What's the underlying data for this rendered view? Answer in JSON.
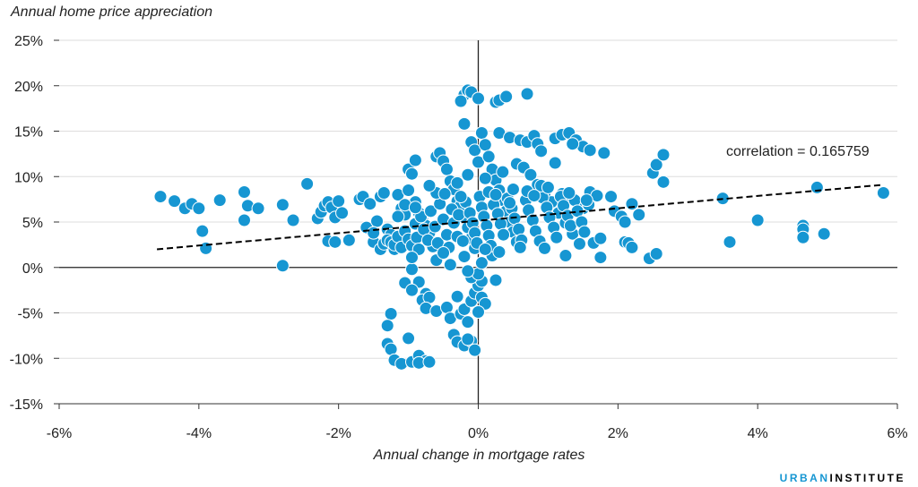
{
  "chart_data": {
    "type": "scatter",
    "ylabel": "Annual home price appreciation",
    "xlabel": "Annual change in mortgage rates",
    "annotation": "correlation = 0.165759",
    "brand": {
      "part1": "URBAN",
      "part2": "INSTITUTE"
    },
    "xlim": [
      -6,
      6
    ],
    "ylim": [
      -15,
      25
    ],
    "x_ticks": [
      -6,
      -4,
      -2,
      0,
      2,
      4,
      6
    ],
    "x_tick_labels": [
      "-6%",
      "-4%",
      "-2%",
      "0%",
      "2%",
      "4%",
      "6%"
    ],
    "y_ticks": [
      -15,
      -10,
      -5,
      0,
      5,
      10,
      15,
      20,
      25
    ],
    "y_tick_labels": [
      "-15%",
      "-10%",
      "-5%",
      "0%",
      "5%",
      "10%",
      "15%",
      "20%",
      "25%"
    ],
    "grid": "horizontal",
    "colors": {
      "points": "#1696d2",
      "point_stroke": "#ffffff",
      "trend": "#000000",
      "grid": "#dedddd"
    },
    "trendline": {
      "x": [
        -4.6,
        5.8
      ],
      "y": [
        2.0,
        9.1
      ],
      "style": "dashed"
    },
    "points": [
      [
        -4.55,
        7.8
      ],
      [
        -4.35,
        7.3
      ],
      [
        -4.2,
        6.5
      ],
      [
        -4.1,
        7.0
      ],
      [
        -4.0,
        6.5
      ],
      [
        -3.95,
        4.0
      ],
      [
        -3.9,
        2.1
      ],
      [
        -3.7,
        7.4
      ],
      [
        -3.35,
        8.3
      ],
      [
        -3.3,
        6.8
      ],
      [
        -3.35,
        5.2
      ],
      [
        -3.15,
        6.5
      ],
      [
        -2.8,
        6.9
      ],
      [
        -2.8,
        0.2
      ],
      [
        -2.65,
        5.2
      ],
      [
        -2.45,
        9.2
      ],
      [
        -2.3,
        5.4
      ],
      [
        -2.25,
        6.1
      ],
      [
        -2.2,
        6.8
      ],
      [
        -2.15,
        7.2
      ],
      [
        -2.1,
        6.6
      ],
      [
        -2.05,
        5.5
      ],
      [
        -2.0,
        7.3
      ],
      [
        -1.95,
        6.0
      ],
      [
        -2.15,
        2.9
      ],
      [
        -2.05,
        2.8
      ],
      [
        -1.85,
        3.0
      ],
      [
        -1.7,
        7.5
      ],
      [
        -1.65,
        7.8
      ],
      [
        -1.55,
        7.0
      ],
      [
        -1.5,
        2.8
      ],
      [
        -1.4,
        7.8
      ],
      [
        -1.35,
        8.2
      ],
      [
        -1.3,
        4.2
      ],
      [
        -1.25,
        3.6
      ],
      [
        -1.2,
        2.0
      ],
      [
        -1.15,
        8.0
      ],
      [
        -1.1,
        6.5
      ],
      [
        -1.05,
        5.8
      ],
      [
        -1.0,
        10.8
      ],
      [
        -0.95,
        10.3
      ],
      [
        -0.9,
        11.8
      ],
      [
        -1.0,
        8.5
      ],
      [
        -0.9,
        7.2
      ],
      [
        -0.85,
        6.0
      ],
      [
        -0.8,
        5.2
      ],
      [
        -0.75,
        4.6
      ],
      [
        -0.7,
        3.8
      ],
      [
        -0.65,
        2.3
      ],
      [
        -0.6,
        12.2
      ],
      [
        -0.55,
        12.6
      ],
      [
        -0.5,
        11.7
      ],
      [
        -0.45,
        10.8
      ],
      [
        -0.4,
        9.5
      ],
      [
        -0.35,
        8.6
      ],
      [
        -0.3,
        7.3
      ],
      [
        -0.25,
        6.8
      ],
      [
        -0.2,
        5.5
      ],
      [
        -0.15,
        4.4
      ],
      [
        -0.1,
        3.2
      ],
      [
        -0.05,
        2.1
      ],
      [
        -0.1,
        13.8
      ],
      [
        -0.05,
        12.9
      ],
      [
        0.0,
        11.6
      ],
      [
        -0.2,
        19.0
      ],
      [
        -0.15,
        19.5
      ],
      [
        -0.1,
        19.3
      ],
      [
        0.0,
        18.6
      ],
      [
        -0.25,
        18.3
      ],
      [
        -0.2,
        15.8
      ],
      [
        0.05,
        14.8
      ],
      [
        0.1,
        13.5
      ],
      [
        0.15,
        12.2
      ],
      [
        0.2,
        10.8
      ],
      [
        0.25,
        9.6
      ],
      [
        0.3,
        8.5
      ],
      [
        0.35,
        7.4
      ],
      [
        0.4,
        6.2
      ],
      [
        0.45,
        5.0
      ],
      [
        0.5,
        3.9
      ],
      [
        0.55,
        2.8
      ],
      [
        0.2,
        1.3
      ],
      [
        0.25,
        -1.4
      ],
      [
        0.25,
        18.2
      ],
      [
        0.3,
        18.4
      ],
      [
        0.4,
        18.8
      ],
      [
        0.7,
        19.1
      ],
      [
        0.3,
        14.8
      ],
      [
        0.45,
        14.3
      ],
      [
        0.6,
        14.0
      ],
      [
        0.7,
        13.8
      ],
      [
        0.8,
        14.5
      ],
      [
        0.85,
        13.6
      ],
      [
        0.9,
        12.8
      ],
      [
        0.55,
        11.4
      ],
      [
        0.65,
        11.0
      ],
      [
        0.75,
        10.2
      ],
      [
        0.85,
        9.1
      ],
      [
        0.95,
        8.0
      ],
      [
        1.05,
        7.2
      ],
      [
        1.15,
        6.0
      ],
      [
        1.25,
        4.9
      ],
      [
        1.35,
        3.7
      ],
      [
        1.45,
        2.6
      ],
      [
        1.1,
        14.2
      ],
      [
        1.2,
        14.6
      ],
      [
        1.3,
        14.8
      ],
      [
        1.4,
        14.0
      ],
      [
        1.5,
        13.3
      ],
      [
        1.35,
        13.6
      ],
      [
        1.6,
        12.9
      ],
      [
        1.1,
        11.5
      ],
      [
        1.8,
        12.6
      ],
      [
        1.2,
        8.1
      ],
      [
        1.3,
        7.6
      ],
      [
        1.4,
        7.2
      ],
      [
        1.5,
        6.5
      ],
      [
        1.6,
        8.3
      ],
      [
        1.7,
        7.9
      ],
      [
        1.9,
        7.8
      ],
      [
        1.95,
        6.2
      ],
      [
        2.05,
        5.6
      ],
      [
        2.1,
        5.0
      ],
      [
        2.2,
        7.0
      ],
      [
        2.3,
        5.8
      ],
      [
        1.25,
        1.3
      ],
      [
        1.75,
        1.1
      ],
      [
        1.65,
        2.7
      ],
      [
        1.75,
        3.2
      ],
      [
        2.1,
        2.8
      ],
      [
        2.15,
        2.7
      ],
      [
        2.2,
        2.2
      ],
      [
        2.45,
        1.0
      ],
      [
        2.55,
        1.5
      ],
      [
        2.5,
        10.4
      ],
      [
        2.55,
        11.3
      ],
      [
        2.65,
        12.4
      ],
      [
        2.65,
        9.4
      ],
      [
        3.5,
        7.6
      ],
      [
        3.6,
        2.8
      ],
      [
        4.0,
        5.2
      ],
      [
        4.65,
        4.6
      ],
      [
        4.65,
        4.2
      ],
      [
        4.65,
        3.3
      ],
      [
        4.85,
        8.8
      ],
      [
        4.95,
        3.7
      ],
      [
        5.8,
        8.2
      ],
      [
        -0.95,
        -0.2
      ],
      [
        -0.85,
        -1.6
      ],
      [
        -1.05,
        -1.7
      ],
      [
        -0.95,
        -2.5
      ],
      [
        -0.75,
        -2.9
      ],
      [
        -0.8,
        -3.6
      ],
      [
        -0.7,
        -3.3
      ],
      [
        -0.75,
        -4.5
      ],
      [
        -0.6,
        -4.8
      ],
      [
        -0.45,
        -4.4
      ],
      [
        -0.4,
        -5.6
      ],
      [
        -0.3,
        -3.2
      ],
      [
        -0.25,
        -5.1
      ],
      [
        -0.2,
        -4.6
      ],
      [
        -0.15,
        -6.0
      ],
      [
        -0.1,
        -3.7
      ],
      [
        -0.05,
        -2.8
      ],
      [
        0.0,
        -2.0
      ],
      [
        0.05,
        -3.3
      ],
      [
        0.1,
        -4.0
      ],
      [
        0.0,
        -4.9
      ],
      [
        0.05,
        -1.5
      ],
      [
        -0.1,
        -1.1
      ],
      [
        0.0,
        -0.7
      ],
      [
        -0.35,
        -7.4
      ],
      [
        -0.3,
        -8.2
      ],
      [
        -0.2,
        -8.6
      ],
      [
        -0.1,
        -8.1
      ],
      [
        -0.05,
        -9.1
      ],
      [
        -0.15,
        -7.9
      ],
      [
        -1.25,
        -5.1
      ],
      [
        -1.3,
        -6.4
      ],
      [
        -1.3,
        -8.4
      ],
      [
        -1.25,
        -9.0
      ],
      [
        -1.2,
        -10.2
      ],
      [
        -1.1,
        -10.6
      ],
      [
        -0.95,
        -10.4
      ],
      [
        -0.85,
        -9.7
      ],
      [
        -0.75,
        -10.3
      ],
      [
        -0.85,
        -10.5
      ],
      [
        -0.7,
        -10.4
      ],
      [
        -1.0,
        -7.8
      ],
      [
        -1.4,
        2.0
      ],
      [
        -1.35,
        2.6
      ],
      [
        -1.3,
        3.0
      ],
      [
        -1.25,
        2.8
      ],
      [
        -1.2,
        2.5
      ],
      [
        -1.15,
        3.4
      ],
      [
        -1.1,
        2.2
      ],
      [
        -1.05,
        4.0
      ],
      [
        -1.0,
        3.1
      ],
      [
        -0.95,
        2.4
      ],
      [
        -0.9,
        4.8
      ],
      [
        -0.88,
        3.3
      ],
      [
        -0.85,
        2.0
      ],
      [
        -0.82,
        5.6
      ],
      [
        -0.78,
        4.2
      ],
      [
        -0.72,
        3.0
      ],
      [
        -0.68,
        6.2
      ],
      [
        -0.62,
        4.5
      ],
      [
        -0.58,
        2.7
      ],
      [
        -0.55,
        7.0
      ],
      [
        -0.5,
        5.3
      ],
      [
        -0.45,
        3.6
      ],
      [
        -0.42,
        2.2
      ],
      [
        -0.38,
        6.4
      ],
      [
        -0.35,
        4.9
      ],
      [
        -0.3,
        3.4
      ],
      [
        -0.28,
        5.8
      ],
      [
        -0.22,
        2.9
      ],
      [
        -0.18,
        7.2
      ],
      [
        -0.12,
        6.0
      ],
      [
        -0.08,
        4.9
      ],
      [
        -0.05,
        3.8
      ],
      [
        -0.02,
        2.7
      ],
      [
        0.02,
        7.8
      ],
      [
        0.05,
        6.6
      ],
      [
        0.08,
        5.6
      ],
      [
        0.12,
        4.6
      ],
      [
        0.15,
        3.5
      ],
      [
        0.18,
        2.4
      ],
      [
        0.22,
        6.9
      ],
      [
        0.28,
        5.9
      ],
      [
        0.32,
        4.8
      ],
      [
        0.36,
        3.6
      ],
      [
        0.42,
        7.6
      ],
      [
        0.48,
        6.5
      ],
      [
        0.52,
        5.4
      ],
      [
        0.58,
        4.2
      ],
      [
        0.62,
        3.0
      ],
      [
        0.68,
        7.4
      ],
      [
        0.72,
        6.3
      ],
      [
        0.78,
        5.2
      ],
      [
        0.82,
        4.0
      ],
      [
        0.88,
        2.9
      ],
      [
        0.92,
        7.7
      ],
      [
        0.98,
        6.6
      ],
      [
        1.02,
        5.5
      ],
      [
        1.08,
        4.4
      ],
      [
        1.12,
        3.3
      ],
      [
        1.18,
        7.8
      ],
      [
        1.22,
        6.8
      ],
      [
        1.28,
        5.7
      ],
      [
        1.32,
        4.6
      ],
      [
        1.38,
        7.4
      ],
      [
        1.42,
        6.2
      ],
      [
        1.48,
        5.0
      ],
      [
        1.52,
        3.9
      ],
      [
        1.58,
        6.9
      ],
      [
        -0.6,
        8.2
      ],
      [
        -0.3,
        9.3
      ],
      [
        0.1,
        9.8
      ],
      [
        0.5,
        8.6
      ],
      [
        0.9,
        9.0
      ],
      [
        -0.7,
        9.0
      ],
      [
        -0.15,
        10.2
      ],
      [
        0.35,
        10.5
      ],
      [
        0.7,
        8.4
      ],
      [
        1.0,
        8.8
      ],
      [
        -1.15,
        5.6
      ],
      [
        -1.05,
        6.9
      ],
      [
        -0.48,
        8.1
      ],
      [
        0.15,
        8.3
      ],
      [
        0.45,
        7.1
      ],
      [
        0.8,
        7.9
      ],
      [
        1.3,
        8.2
      ],
      [
        1.55,
        7.4
      ],
      [
        -0.9,
        6.6
      ],
      [
        -0.25,
        7.8
      ],
      [
        0.25,
        8.0
      ],
      [
        -1.6,
        4.4
      ],
      [
        -1.45,
        5.1
      ],
      [
        -1.5,
        3.8
      ],
      [
        -0.6,
        0.8
      ],
      [
        -0.4,
        0.3
      ],
      [
        -0.2,
        1.2
      ],
      [
        0.05,
        0.5
      ],
      [
        0.3,
        1.7
      ],
      [
        -0.5,
        1.6
      ],
      [
        -0.15,
        -0.4
      ],
      [
        0.1,
        2.0
      ],
      [
        -0.95,
        1.1
      ],
      [
        0.6,
        2.2
      ],
      [
        0.95,
        2.1
      ]
    ]
  }
}
